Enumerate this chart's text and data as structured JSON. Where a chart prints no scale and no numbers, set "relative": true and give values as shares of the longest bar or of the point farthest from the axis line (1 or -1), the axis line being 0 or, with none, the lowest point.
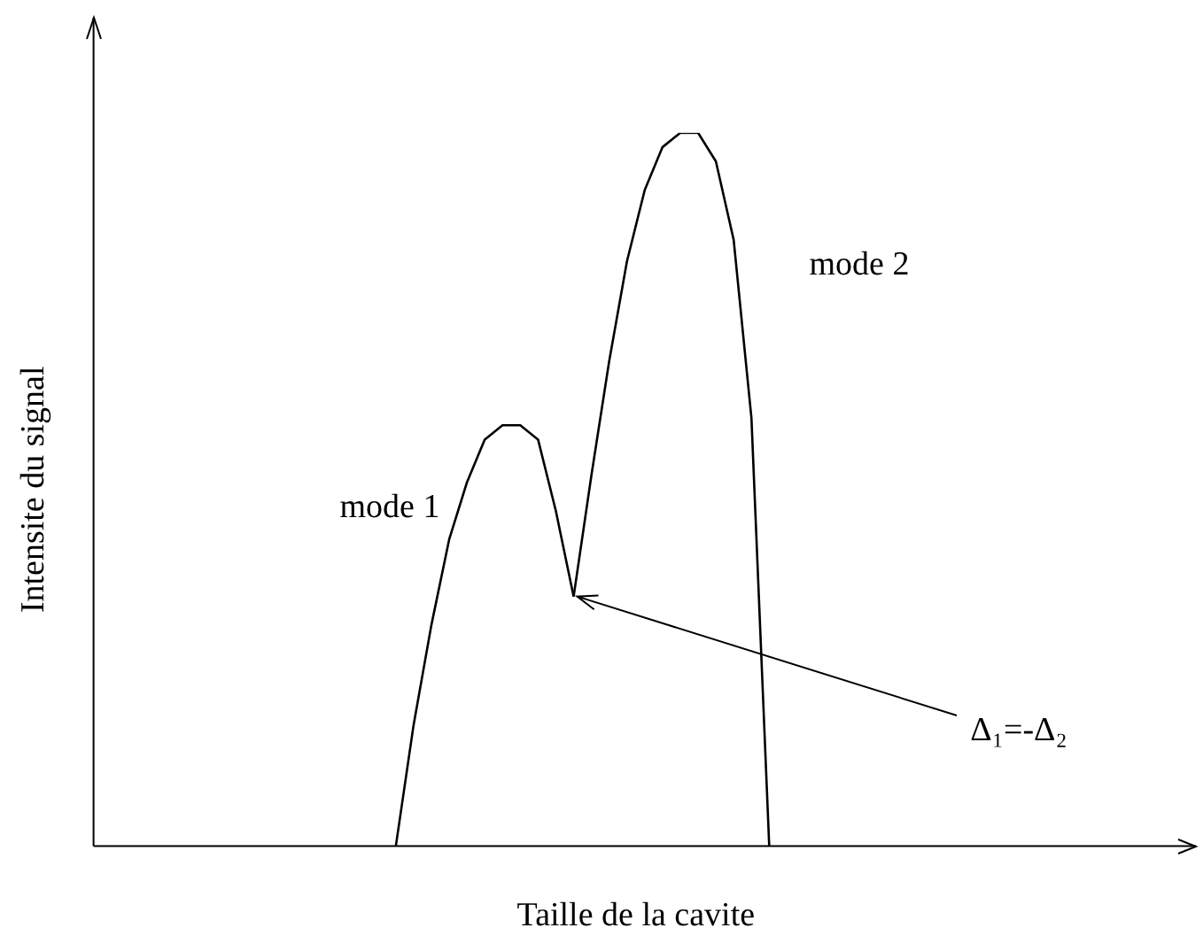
{
  "chart_data": {
    "type": "line",
    "relative": true,
    "xlabel": "Taille de la cavite",
    "ylabel": "Intensite du signal",
    "grid": false,
    "legend": false,
    "marker": "none",
    "line_style": "solid",
    "categories": [
      null,
      null,
      null,
      null,
      null,
      null,
      null,
      null,
      null,
      null,
      null,
      null,
      null,
      null,
      null,
      null,
      null,
      null,
      null,
      null,
      null,
      null,
      null,
      null,
      null,
      null,
      null,
      null,
      null,
      null,
      null,
      null,
      null,
      null,
      null,
      null,
      null,
      null,
      null,
      null,
      null,
      null,
      null,
      null,
      null,
      null,
      null,
      null,
      null,
      null,
      null,
      null,
      null,
      null,
      null,
      null,
      null,
      null,
      null,
      null,
      null,
      null
    ],
    "series": [
      {
        "color": "#000000",
        "values": [
          null,
          null,
          null,
          null,
          null,
          null,
          null,
          null,
          null,
          null,
          null,
          null,
          null,
          null,
          null,
          null,
          null,
          0,
          0.17,
          0.31,
          0.43,
          0.51,
          0.57,
          0.59,
          0.59,
          0.57,
          0.47,
          0.35,
          null,
          null,
          null,
          null,
          null,
          null,
          null,
          null,
          null,
          null,
          null,
          null,
          null,
          null,
          null,
          null,
          null,
          null,
          null,
          null,
          null,
          null,
          null,
          null,
          null,
          null,
          null,
          null,
          null,
          null,
          null,
          null,
          null,
          null
        ]
      },
      {
        "color": "#000000",
        "values": [
          null,
          null,
          null,
          null,
          null,
          null,
          null,
          null,
          null,
          null,
          null,
          null,
          null,
          null,
          null,
          null,
          null,
          null,
          null,
          null,
          null,
          null,
          null,
          null,
          null,
          null,
          null,
          0.35,
          0.52,
          0.68,
          0.82,
          0.92,
          0.98,
          1,
          1,
          0.96,
          0.85,
          0.6,
          0,
          null,
          null,
          null,
          null,
          null,
          null,
          null,
          null,
          null,
          null,
          null,
          null,
          null,
          null,
          null,
          null,
          null,
          null,
          null,
          null,
          null,
          null,
          null
        ]
      }
    ],
    "annotations": [
      "mode 1",
      "mode 2",
      "Δ₁=-Δ₂"
    ]
  }
}
